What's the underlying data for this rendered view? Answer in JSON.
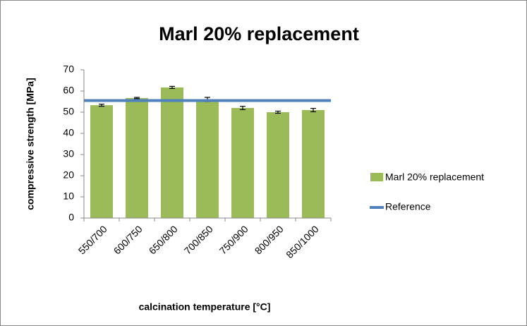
{
  "chart_data": {
    "type": "bar",
    "title": "Marl 20% replacement",
    "xlabel": "calcination temperature [°C]",
    "ylabel": "compressive strength [MPa]",
    "categories": [
      "550/700",
      "600/750",
      "650/800",
      "700/850",
      "750/900",
      "800/950",
      "850/1000"
    ],
    "series": [
      {
        "name": "Marl 20% replacement",
        "color": "#9bbb59",
        "values": [
          53.3,
          56.7,
          61.7,
          56,
          52,
          50,
          51
        ],
        "errors": [
          0.5,
          0.3,
          0.5,
          1,
          0.8,
          0.5,
          0.8
        ]
      }
    ],
    "reference": {
      "name": "Reference",
      "color": "#4f81bd",
      "value": 55.5
    },
    "ylim": [
      0,
      70
    ],
    "yticks": [
      0,
      10,
      20,
      30,
      40,
      50,
      60,
      70
    ],
    "legend": "right"
  }
}
